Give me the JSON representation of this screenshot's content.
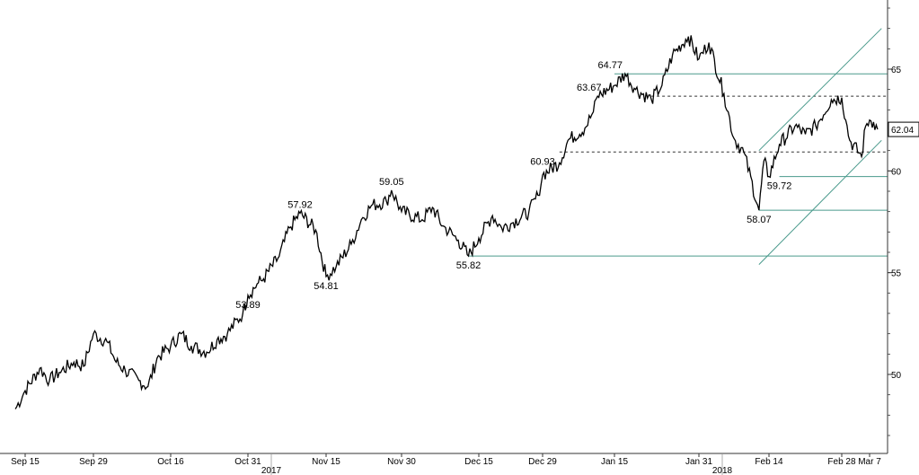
{
  "chart_data": {
    "type": "line",
    "title": "",
    "xlabel": "",
    "ylabel": "",
    "ylim": [
      46,
      69
    ],
    "grid": false,
    "x_ticks": [
      {
        "label": "Sep 15",
        "date": "2017-09-15"
      },
      {
        "label": "Sep 29",
        "date": "2017-09-29"
      },
      {
        "label": "Oct 16",
        "date": "2017-10-16"
      },
      {
        "label": "Oct 31",
        "date": "2017-10-31"
      },
      {
        "label": "Nov 15",
        "date": "2017-11-15"
      },
      {
        "label": "Nov 30",
        "date": "2017-11-30"
      },
      {
        "label": "Dec 15",
        "date": "2017-12-15"
      },
      {
        "label": "Dec 29",
        "date": "2017-12-29"
      },
      {
        "label": "Jan 15",
        "date": "2018-01-15"
      },
      {
        "label": "Jan 31",
        "date": "2018-01-31"
      },
      {
        "label": "Feb 14",
        "date": "2018-02-14"
      },
      {
        "label": "Feb 28",
        "date": "2018-02-28"
      },
      {
        "label": "Mar 7",
        "date": "2018-03-07"
      }
    ],
    "year_labels": [
      {
        "label": "2017",
        "date": "2017-10-31"
      },
      {
        "label": "2018",
        "date": "2018-01-31"
      }
    ],
    "y_ticks": [
      50,
      55,
      60,
      65
    ],
    "last_value_label": "62.04",
    "last_value": 62.04,
    "series": [
      {
        "x": [
          "2017-09-13",
          "2017-09-15",
          "2017-09-18",
          "2017-09-20",
          "2017-09-22",
          "2017-09-25",
          "2017-09-27",
          "2017-09-29",
          "2017-10-02",
          "2017-10-04",
          "2017-10-06",
          "2017-10-09",
          "2017-10-11",
          "2017-10-13",
          "2017-10-16",
          "2017-10-18",
          "2017-10-20",
          "2017-10-23",
          "2017-10-25",
          "2017-10-27",
          "2017-10-30",
          "2017-10-31",
          "2017-11-02",
          "2017-11-03",
          "2017-11-06",
          "2017-11-08",
          "2017-11-10",
          "2017-11-13",
          "2017-11-15",
          "2017-11-17",
          "2017-11-20",
          "2017-11-22",
          "2017-11-24",
          "2017-11-27",
          "2017-11-28",
          "2017-11-30",
          "2017-12-04",
          "2017-12-06",
          "2017-12-08",
          "2017-12-11",
          "2017-12-13",
          "2017-12-15",
          "2017-12-18",
          "2017-12-20",
          "2017-12-22",
          "2017-12-26",
          "2017-12-28",
          "2017-12-29",
          "2018-01-02",
          "2018-01-04",
          "2018-01-08",
          "2018-01-10",
          "2018-01-11",
          "2018-01-15",
          "2018-01-17",
          "2018-01-19",
          "2018-01-22",
          "2018-01-24",
          "2018-01-26",
          "2018-01-29",
          "2018-01-31",
          "2018-02-02",
          "2018-02-05",
          "2018-02-07",
          "2018-02-09",
          "2018-02-12",
          "2018-02-13",
          "2018-02-14",
          "2018-02-16",
          "2018-02-19",
          "2018-02-21",
          "2018-02-23",
          "2018-02-26",
          "2018-02-28",
          "2018-03-01",
          "2018-03-02",
          "2018-03-05",
          "2018-03-06",
          "2018-03-07",
          "2018-03-08",
          "2018-03-09"
        ],
        "values": [
          48.3,
          49.2,
          50.3,
          49.7,
          50.1,
          50.6,
          50.4,
          52.0,
          51.6,
          50.6,
          50.2,
          49.7,
          49.4,
          50.8,
          51.4,
          52.0,
          51.4,
          51.1,
          51.7,
          52.0,
          53.0,
          53.89,
          54.5,
          54.7,
          55.8,
          57.2,
          57.92,
          57.1,
          54.81,
          55.3,
          56.4,
          57.6,
          58.3,
          58.5,
          59.05,
          58.0,
          57.6,
          58.2,
          57.3,
          56.6,
          55.82,
          56.7,
          57.8,
          57.2,
          57.4,
          58.0,
          58.8,
          59.8,
          60.4,
          61.5,
          62.1,
          62.9,
          63.67,
          64.2,
          64.77,
          64.0,
          63.5,
          64.2,
          65.7,
          66.6,
          65.5,
          66.3,
          63.8,
          61.6,
          60.9,
          58.07,
          60.5,
          59.72,
          61.3,
          62.2,
          61.8,
          62.2,
          63.5,
          63.6,
          62.5,
          61.5,
          60.7,
          62.2,
          62.5,
          62.4,
          62.04
        ]
      }
    ],
    "annotations": [
      {
        "text": "57.92",
        "date": "2017-11-10",
        "value": 57.92,
        "position": "above"
      },
      {
        "text": "59.05",
        "date": "2017-11-28",
        "value": 59.05,
        "position": "above"
      },
      {
        "text": "53.89",
        "date": "2017-10-31",
        "value": 53.89,
        "position": "below"
      },
      {
        "text": "54.81",
        "date": "2017-11-15",
        "value": 54.81,
        "position": "below"
      },
      {
        "text": "55.82",
        "date": "2017-12-13",
        "value": 55.82,
        "position": "below"
      },
      {
        "text": "60.93",
        "date": "2017-12-29",
        "value": 60.93,
        "position": "below"
      },
      {
        "text": "63.67",
        "date": "2018-01-09",
        "value": 63.67,
        "position": "above"
      },
      {
        "text": "64.77",
        "date": "2018-01-14",
        "value": 64.77,
        "position": "above"
      },
      {
        "text": "58.07",
        "date": "2018-02-12",
        "value": 58.07,
        "position": "below"
      },
      {
        "text": "59.72",
        "date": "2018-02-16",
        "value": 59.72,
        "position": "below"
      }
    ],
    "horizontal_levels": [
      {
        "value": 64.77,
        "from": "2018-01-15",
        "style": "solid"
      },
      {
        "value": 63.67,
        "from": "2018-01-22",
        "style": "dashed"
      },
      {
        "value": 60.93,
        "from": "2018-01-02",
        "style": "dashed"
      },
      {
        "value": 59.72,
        "from": "2018-02-16",
        "style": "solid"
      },
      {
        "value": 58.07,
        "from": "2018-02-12",
        "style": "solid"
      },
      {
        "value": 55.82,
        "from": "2017-12-13",
        "style": "solid"
      }
    ],
    "channel_lines": [
      {
        "x1": "2018-02-12",
        "y1": 61.0,
        "x2": "2018-03-10",
        "y2": 67.0
      },
      {
        "x1": "2018-02-12",
        "y1": 55.4,
        "x2": "2018-03-10",
        "y2": 61.5
      }
    ],
    "colors": {
      "price": "#000000",
      "levels": "#4a9a8c",
      "axis": "#333333"
    }
  }
}
